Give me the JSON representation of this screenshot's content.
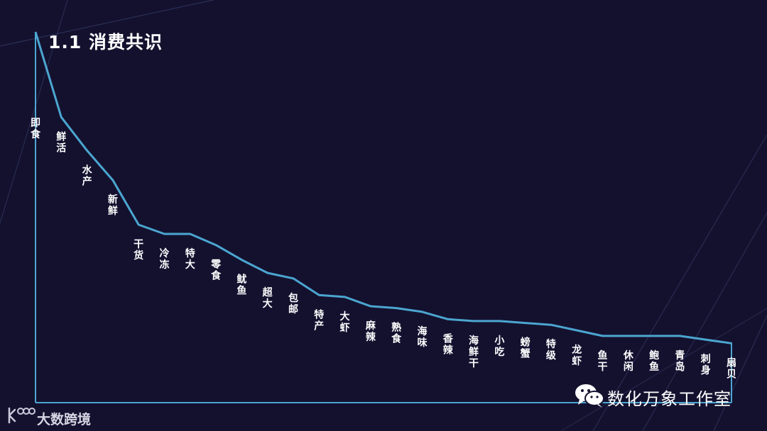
{
  "slide": {
    "title": "1.1 消费共识"
  },
  "watermark": {
    "account": "数化万象工作室",
    "icon": "wechat-icon"
  },
  "brand": {
    "name": "大数跨境",
    "logo": "kfoo-logo"
  },
  "colors": {
    "background": "#14112f",
    "line": "#4ba6d0",
    "axis": "#4ba6d0",
    "text": "#ffffff"
  },
  "chart_data": {
    "type": "line",
    "title": "1.1 消费共识",
    "xlabel": "",
    "ylabel": "",
    "categories": [
      "即食",
      "鲜活",
      "水产",
      "新鲜",
      "干货",
      "冷冻",
      "特大",
      "零食",
      "鱿鱼",
      "超大",
      "包邮",
      "特产",
      "大虾",
      "麻辣",
      "熟食",
      "海味",
      "香辣",
      "海鲜干",
      "小吃",
      "螃蟹",
      "特级",
      "龙虾",
      "鱼干",
      "休闲",
      "鲍鱼",
      "青岛",
      "刺身",
      "扇贝"
    ],
    "values": [
      100,
      77,
      68,
      60,
      48,
      45.5,
      45.5,
      42.5,
      38.5,
      35,
      33.5,
      29,
      28.5,
      26,
      25.5,
      24.5,
      22.5,
      22,
      22,
      21.5,
      21,
      19.5,
      18,
      18,
      18,
      18,
      17,
      16
    ],
    "ylim": [
      0,
      100
    ],
    "grid": false,
    "legend": "none",
    "data_labels": "category names under line"
  }
}
